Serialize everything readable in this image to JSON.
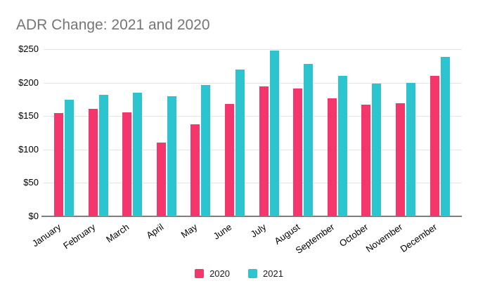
{
  "title": "ADR Change: 2021 and 2020",
  "colors": {
    "series_2020": "#F3366B",
    "series_2021": "#2CC5CF",
    "title_text": "#757575",
    "axis_text": "#000000",
    "gridline": "#E4E4E4",
    "axis_line": "#7F7F7F",
    "background": "#FFFFFF"
  },
  "chart_data": {
    "type": "bar",
    "title": "ADR Change: 2021 and 2020",
    "categories": [
      "January",
      "February",
      "March",
      "April",
      "May",
      "June",
      "July",
      "August",
      "September",
      "October",
      "November",
      "December"
    ],
    "series": [
      {
        "name": "2020",
        "color": "#F3366B",
        "values": [
          154,
          161,
          155,
          110,
          138,
          168,
          194,
          191,
          176,
          167,
          169,
          210
        ]
      },
      {
        "name": "2021",
        "color": "#2CC5CF",
        "values": [
          174,
          182,
          185,
          180,
          196,
          220,
          248,
          228,
          210,
          199,
          200,
          238
        ]
      }
    ],
    "xlabel": "",
    "ylabel": "",
    "ylim": [
      0,
      250
    ],
    "ytick_step": 50,
    "ytick_labels": [
      "$0",
      "$50",
      "$100",
      "$150",
      "$200",
      "$250"
    ],
    "grid": true,
    "legend_position": "bottom",
    "x_label_rotation_deg": -35
  }
}
